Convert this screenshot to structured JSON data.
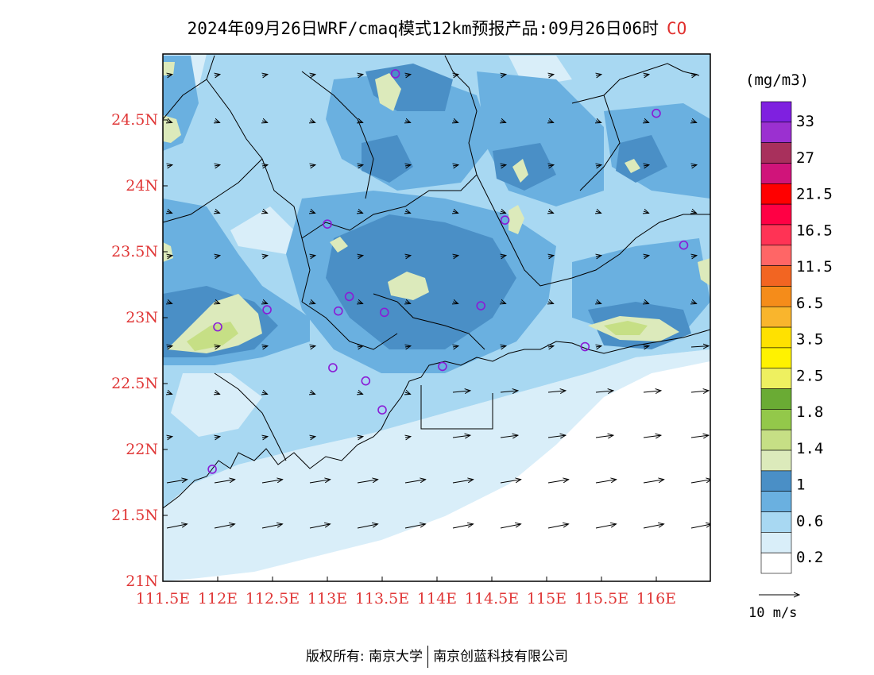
{
  "title": {
    "main": "2024年09月26日WRF/cmaq模式12km预报产品:09月26日06时",
    "species": "CO"
  },
  "axes": {
    "lon_labels": [
      "111.5E",
      "112E",
      "112.5E",
      "113E",
      "113.5E",
      "114E",
      "114.5E",
      "115E",
      "115.5E",
      "116E"
    ],
    "lat_labels": [
      "24.5N",
      "24N",
      "23.5N",
      "23N",
      "22.5N",
      "22N",
      "21.5N",
      "21N"
    ],
    "lon_range": [
      111.5,
      116.5
    ],
    "lat_range": [
      21.0,
      25.0
    ]
  },
  "legend": {
    "unit": "(mg/m3)",
    "labels": [
      "0.2",
      "0.6",
      "1",
      "1.4",
      "1.8",
      "2.5",
      "3.5",
      "6.5",
      "11.5",
      "16.5",
      "21.5",
      "27",
      "33"
    ],
    "colors": [
      "#ffffff",
      "#d9eef9",
      "#a8d8f2",
      "#6ab0e0",
      "#4a8fc6",
      "#dceabb",
      "#c6df85",
      "#93c84a",
      "#6aab34",
      "#eef060",
      "#fff200",
      "#ffe100",
      "#f9b52d",
      "#f58c1a",
      "#f26522",
      "#ff6666",
      "#ff3355",
      "#ff0044",
      "#ff0000",
      "#d0147a",
      "#a8305c",
      "#9b30d0",
      "#7f20e0"
    ]
  },
  "wind_reference": {
    "label": "10 m/s"
  },
  "stations": [
    {
      "lon": 113.62,
      "lat": 24.85
    },
    {
      "lon": 116.0,
      "lat": 24.55
    },
    {
      "lon": 114.62,
      "lat": 23.74
    },
    {
      "lon": 113.0,
      "lat": 23.71
    },
    {
      "lon": 116.25,
      "lat": 23.55
    },
    {
      "lon": 113.2,
      "lat": 23.16
    },
    {
      "lon": 113.1,
      "lat": 23.05
    },
    {
      "lon": 113.52,
      "lat": 23.04
    },
    {
      "lon": 114.4,
      "lat": 23.09
    },
    {
      "lon": 112.45,
      "lat": 23.06
    },
    {
      "lon": 112.0,
      "lat": 22.93
    },
    {
      "lon": 113.05,
      "lat": 22.62
    },
    {
      "lon": 113.35,
      "lat": 22.52
    },
    {
      "lon": 114.05,
      "lat": 22.63
    },
    {
      "lon": 115.35,
      "lat": 22.78
    },
    {
      "lon": 113.5,
      "lat": 22.3
    },
    {
      "lon": 111.95,
      "lat": 21.85
    }
  ],
  "copyright": {
    "left": "版权所有: 南京大学",
    "right": "南京创蓝科技有限公司"
  }
}
